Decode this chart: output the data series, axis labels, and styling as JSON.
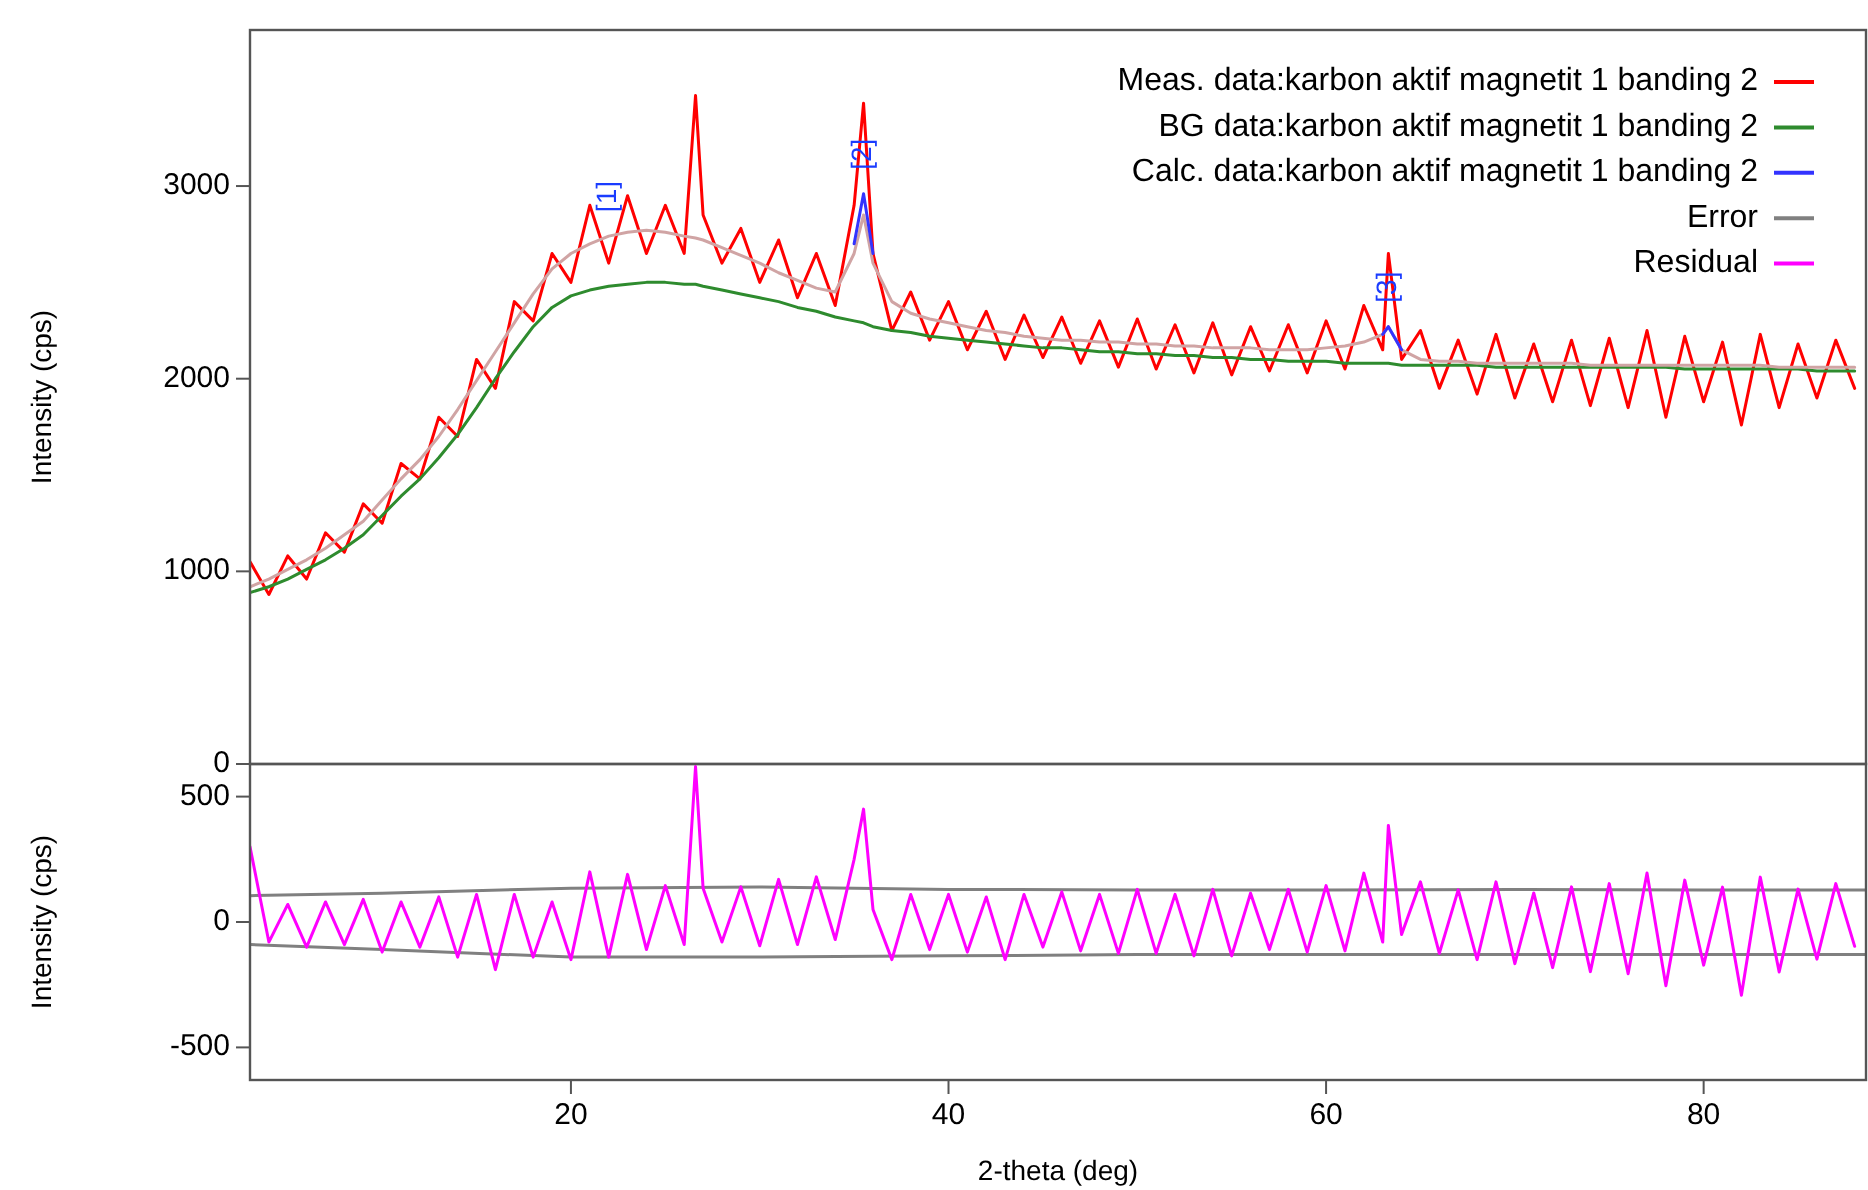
{
  "chart_data": [
    {
      "type": "line",
      "ylabel": "Intensity (cps)",
      "xlim": [
        3,
        88.6
      ],
      "ylim": [
        0,
        3810
      ],
      "yticks": [
        0,
        1000,
        2000,
        3000
      ],
      "tick_labels": "y",
      "legend": "top right",
      "x": [
        3,
        4,
        5,
        6,
        7,
        8,
        9,
        10,
        11,
        12,
        13,
        14,
        15,
        16,
        17,
        18,
        19,
        20,
        21,
        22,
        23,
        24,
        25,
        26,
        26.6,
        27,
        28,
        29,
        30,
        31,
        32,
        33,
        34,
        35,
        35.5,
        36,
        37,
        38,
        39,
        40,
        41,
        42,
        43,
        44,
        45,
        46,
        47,
        48,
        49,
        50,
        51,
        52,
        53,
        54,
        55,
        56,
        57,
        58,
        59,
        60,
        61,
        62,
        63,
        63.3,
        64,
        65,
        66,
        67,
        68,
        69,
        70,
        71,
        72,
        73,
        74,
        75,
        76,
        77,
        78,
        79,
        80,
        81,
        82,
        83,
        84,
        85,
        86,
        87,
        88
      ],
      "series": [
        {
          "name": "Meas. data:karbon aktif magnetit 1 banding 2",
          "color": "#ff0000",
          "values": [
            1050,
            880,
            1080,
            960,
            1200,
            1100,
            1350,
            1250,
            1560,
            1480,
            1800,
            1700,
            2100,
            1950,
            2400,
            2300,
            2650,
            2500,
            2900,
            2600,
            2950,
            2650,
            2900,
            2650,
            3470,
            2850,
            2600,
            2780,
            2500,
            2720,
            2420,
            2650,
            2380,
            2900,
            3430,
            2650,
            2250,
            2450,
            2200,
            2400,
            2150,
            2350,
            2100,
            2330,
            2110,
            2320,
            2080,
            2300,
            2060,
            2310,
            2050,
            2280,
            2030,
            2290,
            2020,
            2270,
            2040,
            2280,
            2030,
            2300,
            2050,
            2380,
            2150,
            2650,
            2100,
            2250,
            1950,
            2200,
            1920,
            2230,
            1900,
            2180,
            1880,
            2200,
            1860,
            2210,
            1850,
            2250,
            1800,
            2220,
            1880,
            2190,
            1760,
            2230,
            1850,
            2180,
            1900,
            2200,
            1950
          ]
        },
        {
          "name": "BG data:karbon aktif magnetit 1 banding 2",
          "color": "#2e8b2e",
          "values": [
            890,
            920,
            960,
            1010,
            1060,
            1120,
            1190,
            1290,
            1390,
            1480,
            1590,
            1710,
            1850,
            2000,
            2140,
            2270,
            2370,
            2430,
            2460,
            2480,
            2490,
            2500,
            2500,
            2490,
            2490,
            2480,
            2460,
            2440,
            2420,
            2400,
            2370,
            2350,
            2320,
            2300,
            2290,
            2270,
            2250,
            2240,
            2220,
            2210,
            2200,
            2190,
            2180,
            2170,
            2160,
            2160,
            2150,
            2140,
            2140,
            2130,
            2130,
            2120,
            2120,
            2110,
            2110,
            2100,
            2100,
            2090,
            2090,
            2090,
            2080,
            2080,
            2080,
            2080,
            2070,
            2070,
            2070,
            2070,
            2070,
            2060,
            2060,
            2060,
            2060,
            2060,
            2060,
            2060,
            2060,
            2060,
            2060,
            2050,
            2050,
            2050,
            2050,
            2050,
            2050,
            2050,
            2040,
            2040,
            2040
          ]
        },
        {
          "color": "#d0a4a4",
          "values": [
            920,
            960,
            1010,
            1060,
            1120,
            1190,
            1260,
            1370,
            1480,
            1580,
            1700,
            1840,
            1990,
            2140,
            2290,
            2440,
            2570,
            2650,
            2700,
            2740,
            2760,
            2770,
            2760,
            2740,
            2730,
            2720,
            2680,
            2640,
            2600,
            2550,
            2510,
            2470,
            2450,
            2650,
            2850,
            2600,
            2400,
            2340,
            2310,
            2290,
            2270,
            2250,
            2240,
            2220,
            2210,
            2200,
            2200,
            2190,
            2190,
            2180,
            2180,
            2170,
            2170,
            2160,
            2160,
            2160,
            2150,
            2150,
            2150,
            2160,
            2170,
            2190,
            2230,
            2270,
            2150,
            2100,
            2090,
            2090,
            2080,
            2080,
            2080,
            2080,
            2080,
            2080,
            2070,
            2070,
            2070,
            2070,
            2070,
            2070,
            2070,
            2070,
            2070,
            2070,
            2060,
            2060,
            2060,
            2060,
            2060
          ]
        },
        {
          "name": "Calc. data:karbon aktif magnetit 1 banding 2",
          "color": "#3333ff",
          "values": [
            null,
            null,
            null,
            null,
            null,
            null,
            null,
            null,
            null,
            null,
            null,
            null,
            null,
            null,
            null,
            null,
            null,
            null,
            null,
            null,
            null,
            null,
            null,
            null,
            null,
            null,
            null,
            null,
            null,
            null,
            null,
            null,
            null,
            2700,
            2960,
            2650,
            null,
            null,
            null,
            null,
            null,
            null,
            null,
            null,
            null,
            null,
            null,
            null,
            null,
            null,
            null,
            null,
            null,
            null,
            null,
            null,
            null,
            null,
            null,
            null,
            null,
            null,
            2230,
            2270,
            2150,
            null,
            null,
            null,
            null,
            null,
            null,
            null,
            null,
            null,
            null,
            null,
            null,
            null,
            null,
            null,
            null,
            null,
            null,
            null,
            null,
            null,
            null,
            null,
            null
          ]
        }
      ],
      "annotations": [
        {
          "text": "[1]",
          "x": 22,
          "y": 2740
        },
        {
          "text": "[2]",
          "x": 35.5,
          "y": 2960
        },
        {
          "text": "[3]",
          "x": 63.3,
          "y": 2270
        }
      ]
    },
    {
      "type": "line",
      "xlabel": "2-theta (deg)",
      "ylabel": "Intensity (cps)",
      "xlim": [
        3,
        88.6
      ],
      "ylim": [
        -630,
        630
      ],
      "xticks": [
        20,
        40,
        60,
        80
      ],
      "yticks": [
        -500,
        0,
        500
      ],
      "x": [
        3,
        4,
        5,
        6,
        7,
        8,
        9,
        10,
        11,
        12,
        13,
        14,
        15,
        16,
        17,
        18,
        19,
        20,
        21,
        22,
        23,
        24,
        25,
        26,
        26.6,
        27,
        28,
        29,
        30,
        31,
        32,
        33,
        34,
        35,
        35.5,
        36,
        37,
        38,
        39,
        40,
        41,
        42,
        43,
        44,
        45,
        46,
        47,
        48,
        49,
        50,
        51,
        52,
        53,
        54,
        55,
        56,
        57,
        58,
        59,
        60,
        61,
        62,
        63,
        63.3,
        64,
        65,
        66,
        67,
        68,
        69,
        70,
        71,
        72,
        73,
        74,
        75,
        76,
        77,
        78,
        79,
        80,
        81,
        82,
        83,
        84,
        85,
        86,
        87,
        88
      ],
      "series": [
        {
          "name": "Error",
          "color": "#808080",
          "x": [
            3,
            10,
            20,
            30,
            40,
            50,
            60,
            70,
            80,
            88.6
          ],
          "values": [
            105,
            115,
            135,
            140,
            130,
            128,
            128,
            130,
            128,
            128
          ]
        },
        {
          "color": "#808080",
          "x": [
            3,
            10,
            20,
            30,
            40,
            50,
            60,
            70,
            80,
            88.6
          ],
          "values": [
            -90,
            -110,
            -140,
            -140,
            -135,
            -130,
            -130,
            -130,
            -130,
            -130
          ]
        },
        {
          "name": "Residual",
          "color": "#ff00ff",
          "values": [
            300,
            -80,
            70,
            -100,
            80,
            -90,
            90,
            -120,
            80,
            -100,
            100,
            -140,
            110,
            -190,
            110,
            -140,
            80,
            -150,
            200,
            -140,
            190,
            -110,
            145,
            -90,
            620,
            135,
            -80,
            140,
            -95,
            170,
            -90,
            180,
            -70,
            250,
            450,
            50,
            -150,
            110,
            -110,
            110,
            -120,
            100,
            -150,
            110,
            -100,
            120,
            -115,
            110,
            -125,
            130,
            -125,
            110,
            -135,
            130,
            -135,
            115,
            -110,
            130,
            -120,
            145,
            -115,
            195,
            -80,
            385,
            -50,
            160,
            -125,
            128,
            -150,
            160,
            -166,
            116,
            -182,
            140,
            -198,
            153,
            -206,
            195,
            -254,
            167,
            -172,
            139,
            -292,
            179,
            -199,
            131,
            -148,
            153,
            -97
          ]
        }
      ]
    }
  ]
}
